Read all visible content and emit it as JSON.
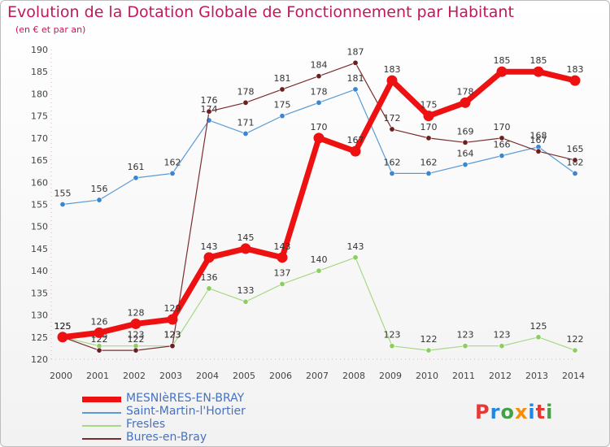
{
  "title": "Evolution de la Dotation Globale de Fonctionnement par Habitant",
  "subtitle": "(en € et par an)",
  "logo": {
    "text": "Proxiti",
    "colors": [
      "#e53935",
      "#1e88e5",
      "#43a047",
      "#fb8c00",
      "#1e88e5",
      "#e53935",
      "#43a047"
    ]
  },
  "chart_data": {
    "type": "line",
    "x": [
      "2000",
      "2001",
      "2002",
      "2003",
      "2004",
      "2005",
      "2006",
      "2007",
      "2008",
      "2009",
      "2010",
      "2011",
      "2012",
      "2013",
      "2014"
    ],
    "ylim": [
      120,
      190
    ],
    "yticks": [
      120,
      125,
      130,
      135,
      140,
      145,
      150,
      155,
      160,
      165,
      170,
      175,
      180,
      185,
      190
    ],
    "grid": false,
    "legend_position": "bottom-left",
    "series": [
      {
        "name": "Saint-Martin-l'Hortier",
        "color": "#5b9bd5",
        "marker": "#3b86d3",
        "width": 1.2,
        "values": [
          155,
          156,
          161,
          162,
          174,
          171,
          175,
          178,
          181,
          162,
          162,
          164,
          166,
          168,
          162
        ]
      },
      {
        "name": "Fresles",
        "color": "#a6d785",
        "marker": "#8ccf5e",
        "width": 1.2,
        "values": [
          125,
          123,
          123,
          123,
          136,
          133,
          137,
          140,
          143,
          123,
          122,
          123,
          123,
          125,
          122
        ]
      },
      {
        "name": "Bures-en-Bray",
        "color": "#7b2d2d",
        "marker": "#6b1f1f",
        "width": 1.2,
        "values": [
          125,
          122,
          122,
          123,
          176,
          178,
          181,
          184,
          187,
          172,
          170,
          169,
          170,
          167,
          165
        ]
      },
      {
        "name": "MESNIèRES-EN-BRAY",
        "color": "#ee1111",
        "marker": "#ee1111",
        "width": 7,
        "values": [
          125,
          126,
          128,
          129,
          143,
          145,
          143,
          170,
          167,
          183,
          175,
          178,
          185,
          185,
          183
        ]
      }
    ],
    "legend_order": [
      "MESNIèRES-EN-BRAY",
      "Saint-Martin-l'Hortier",
      "Fresles",
      "Bures-en-Bray"
    ]
  }
}
